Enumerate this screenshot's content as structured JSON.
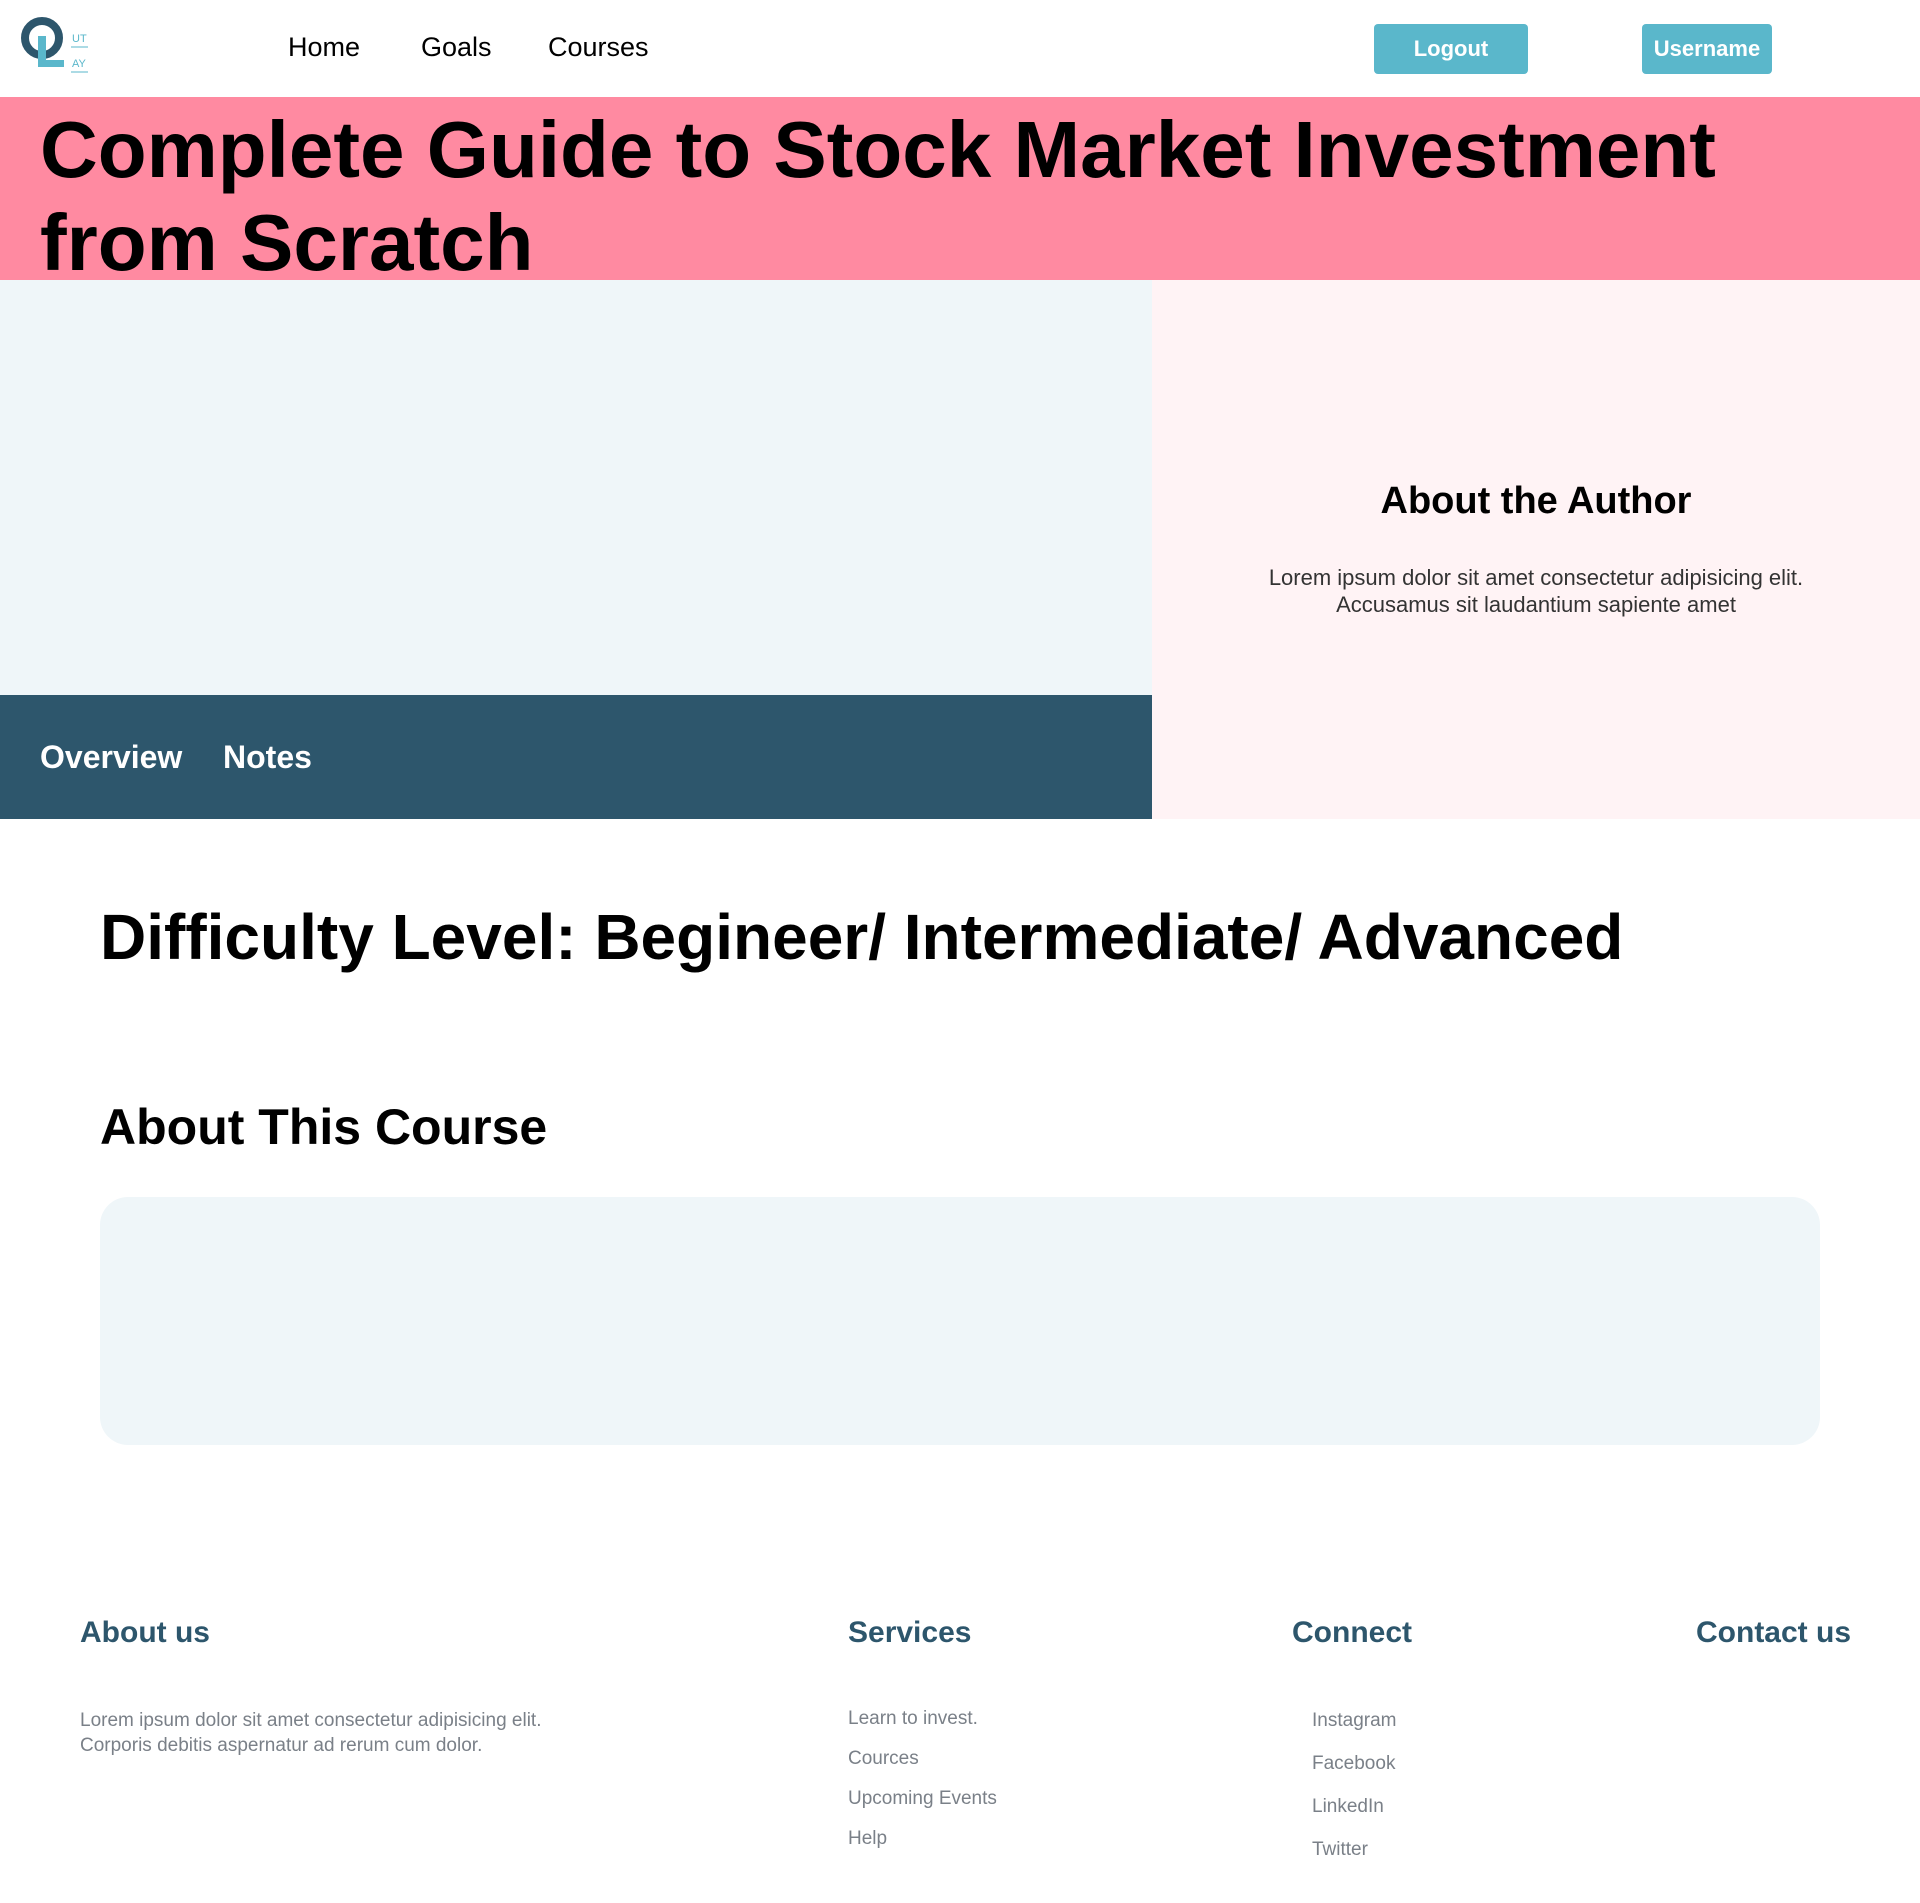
{
  "header": {
    "logo_text_top": "UT",
    "logo_text_bottom": "AY",
    "nav": {
      "home": "Home",
      "goals": "Goals",
      "courses": "Courses"
    },
    "logout_label": "Logout",
    "username_label": "Username",
    "accent_color": "#5ab7cb"
  },
  "course": {
    "title": "Complete Guide to Stock Market Investment from Scratch",
    "banner_color": "#ff8aa1",
    "tabs": {
      "overview": "Overview",
      "notes": "Notes"
    },
    "difficulty": "Difficulty Level: Begineer/ Intermediate/ Advanced",
    "about_heading": "About This Course"
  },
  "author": {
    "heading": "About the Author",
    "text": "Lorem ipsum dolor sit amet consectetur adipisicing elit. Accusamus sit laudantium sapiente amet"
  },
  "footer": {
    "about": {
      "heading": "About us",
      "text": "Lorem ipsum dolor sit amet consectetur adipisicing elit. Corporis debitis aspernatur ad rerum cum dolor."
    },
    "services": {
      "heading": "Services",
      "items": [
        "Learn to invest.",
        "Cources",
        "Upcoming Events",
        "Help"
      ]
    },
    "connect": {
      "heading": "Connect",
      "items": [
        "Instagram",
        "Facebook",
        "LinkedIn",
        "Twitter"
      ]
    },
    "contact": {
      "heading": "Contact us"
    },
    "heading_color": "#2d566c"
  }
}
